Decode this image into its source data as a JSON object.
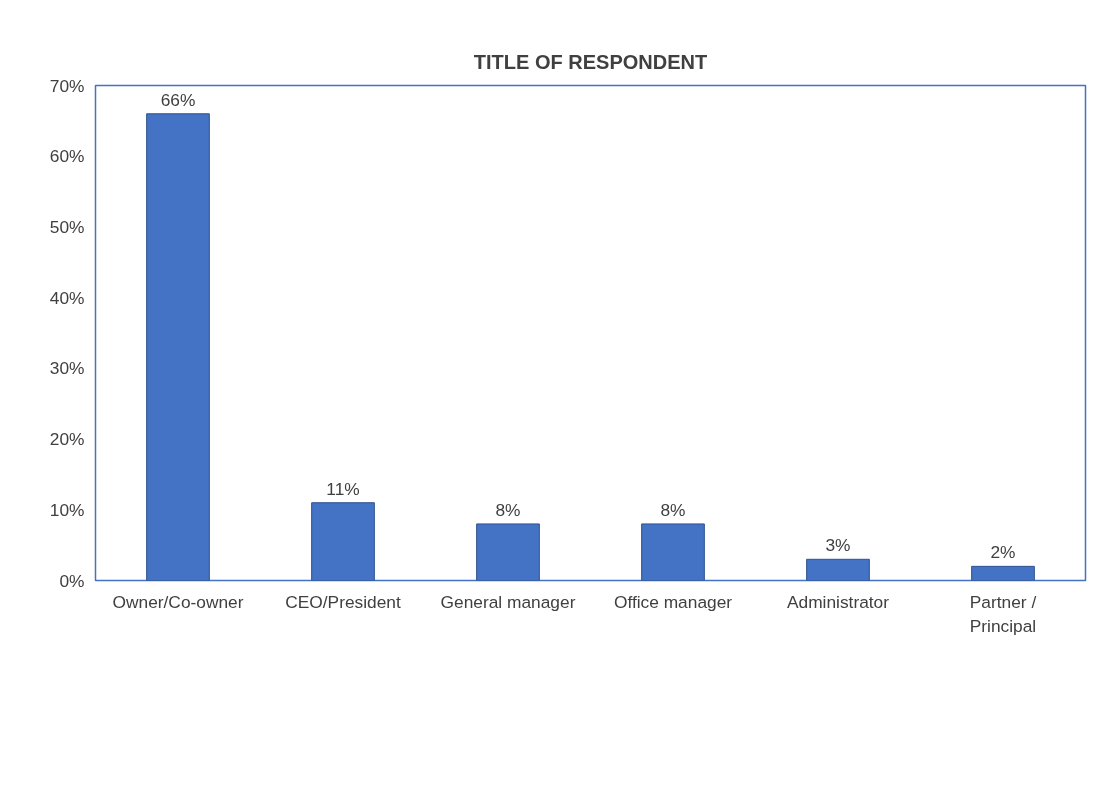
{
  "chart_data": {
    "type": "bar",
    "title": "TITLE OF RESPONDENT",
    "categories": [
      "Owner/Co-owner",
      "CEO/President",
      "General manager",
      "Office manager",
      "Administrator",
      "Partner / Principal"
    ],
    "values": [
      66,
      11,
      8,
      8,
      3,
      2
    ],
    "value_labels": [
      "66%",
      "11%",
      "8%",
      "8%",
      "3%",
      "2%"
    ],
    "color": "#4472c4",
    "ylim": [
      0,
      70
    ],
    "yticks": [
      {
        "value": 0,
        "label": "0%"
      },
      {
        "value": 10,
        "label": "10%"
      },
      {
        "value": 20,
        "label": "20%"
      },
      {
        "value": 30,
        "label": "30%"
      },
      {
        "value": 40,
        "label": "40%"
      },
      {
        "value": 50,
        "label": "50%"
      },
      {
        "value": 60,
        "label": "60%"
      },
      {
        "value": 70,
        "label": "70%"
      }
    ],
    "grid": false
  }
}
